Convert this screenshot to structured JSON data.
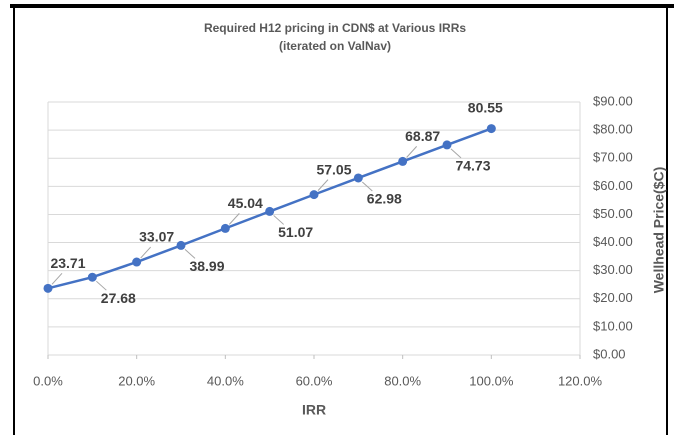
{
  "chart_data": {
    "type": "line",
    "title": "Required H12 pricing in CDN$ at Various IRRs",
    "subtitle": "(iterated on ValNav)",
    "x_label": "IRR",
    "y_label": "Wellhead Price($C)",
    "x": [
      0,
      10,
      20,
      30,
      40,
      50,
      60,
      70,
      80,
      90,
      100
    ],
    "values": [
      23.71,
      27.68,
      33.07,
      38.99,
      45.04,
      51.07,
      57.05,
      62.98,
      68.87,
      74.73,
      80.55
    ],
    "color": "#4472c4",
    "xlim": [
      0,
      120
    ],
    "xticks": [
      {
        "value": 0,
        "label": "0.0%"
      },
      {
        "value": 20,
        "label": "20.0%"
      },
      {
        "value": 40,
        "label": "40.0%"
      },
      {
        "value": 60,
        "label": "60.0%"
      },
      {
        "value": 80,
        "label": "80.0%"
      },
      {
        "value": 100,
        "label": "100.0%"
      },
      {
        "value": 120,
        "label": "120.0%"
      }
    ],
    "ylim": [
      0,
      90
    ],
    "yticks": [
      {
        "value": 0,
        "label": "$0.00"
      },
      {
        "value": 10,
        "label": "$10.00"
      },
      {
        "value": 20,
        "label": "$20.00"
      },
      {
        "value": 30,
        "label": "$30.00"
      },
      {
        "value": 40,
        "label": "$40.00"
      },
      {
        "value": 50,
        "label": "$50.00"
      },
      {
        "value": 60,
        "label": "$60.00"
      },
      {
        "value": 70,
        "label": "$70.00"
      },
      {
        "value": 80,
        "label": "$80.00"
      },
      {
        "value": 90,
        "label": "$90.00"
      }
    ],
    "grid": true
  }
}
